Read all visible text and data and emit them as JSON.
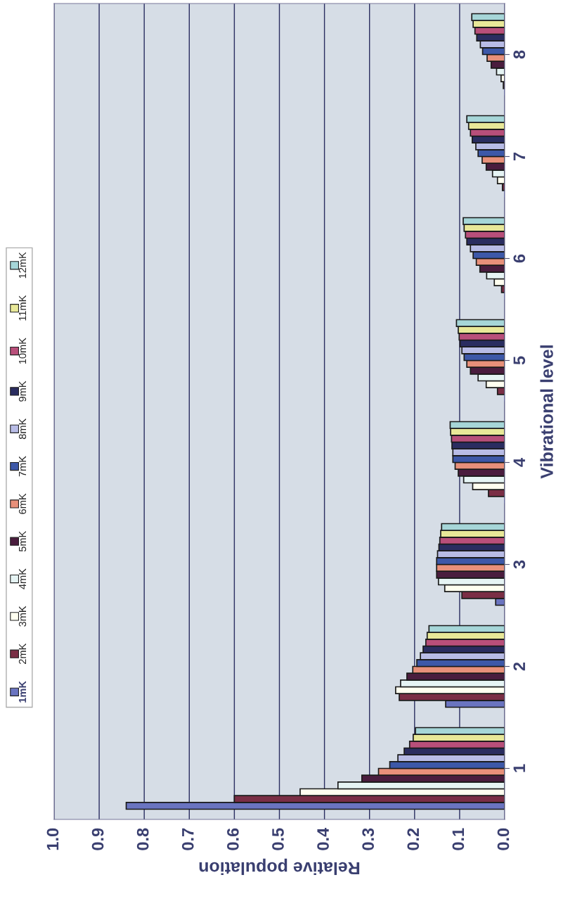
{
  "chart_data": {
    "type": "bar",
    "orientation": "horizontal",
    "xlabel": "Relative population",
    "ylabel": "Vibrational level",
    "categories": [
      "8",
      "7",
      "6",
      "5",
      "4",
      "3",
      "2",
      "1"
    ],
    "xlim": [
      1.0,
      0.0
    ],
    "xticks": [
      {
        "value": 1.0,
        "label": "1.0"
      },
      {
        "value": 0.9,
        "label": "0.9"
      },
      {
        "value": 0.8,
        "label": "0.8"
      },
      {
        "value": 0.7,
        "label": "0.7"
      },
      {
        "value": 0.6,
        "label": "0.6"
      },
      {
        "value": 0.5,
        "label": "0.5"
      },
      {
        "value": 0.4,
        "label": "0.4"
      },
      {
        "value": 0.3,
        "label": "0.3"
      },
      {
        "value": 0.2,
        "label": "0.2"
      },
      {
        "value": 0.1,
        "label": "0.1"
      },
      {
        "value": 0.0,
        "label": "0.0"
      }
    ],
    "grid": "x",
    "legend": "left",
    "series": [
      {
        "name": "1mK",
        "color": "#6a74c0",
        "values": [
          0.0,
          0.0,
          null,
          null,
          null,
          0.02,
          0.131,
          0.84
        ]
      },
      {
        "name": "2mK",
        "color": "#7a2e45",
        "values": [
          0.003,
          0.005,
          0.007,
          0.016,
          0.036,
          0.095,
          0.234,
          0.6
        ]
      },
      {
        "name": "3mK",
        "color": "#fffff0",
        "values": [
          0.008,
          0.016,
          0.023,
          0.041,
          0.071,
          0.133,
          0.242,
          0.454
        ]
      },
      {
        "name": "4mK",
        "color": "#e6f4f4",
        "values": [
          0.018,
          0.027,
          0.04,
          0.059,
          0.091,
          0.147,
          0.231,
          0.37
        ]
      },
      {
        "name": "5mK",
        "color": "#4a1d3e",
        "values": [
          0.03,
          0.041,
          0.055,
          0.076,
          0.103,
          0.151,
          0.217,
          0.317
        ]
      },
      {
        "name": "6mK",
        "color": "#e8907a",
        "values": [
          0.039,
          0.05,
          0.063,
          0.084,
          0.11,
          0.151,
          0.204,
          0.28
        ]
      },
      {
        "name": "7mK",
        "color": "#3d58a8",
        "values": [
          0.049,
          0.059,
          0.07,
          0.09,
          0.115,
          0.151,
          0.195,
          0.255
        ]
      },
      {
        "name": "8mK",
        "color": "#b8bce6",
        "values": [
          0.054,
          0.064,
          0.076,
          0.095,
          0.115,
          0.149,
          0.187,
          0.237
        ]
      },
      {
        "name": "9mK",
        "color": "#2a2d60",
        "values": [
          0.062,
          0.072,
          0.084,
          0.099,
          0.117,
          0.146,
          0.181,
          0.223
        ]
      },
      {
        "name": "10mK",
        "color": "#b84f7a",
        "values": [
          0.066,
          0.076,
          0.087,
          0.101,
          0.118,
          0.144,
          0.175,
          0.211
        ]
      },
      {
        "name": "11mK",
        "color": "#e8e898",
        "values": [
          0.07,
          0.08,
          0.09,
          0.103,
          0.12,
          0.142,
          0.172,
          0.203
        ]
      },
      {
        "name": "12mK",
        "color": "#a6d6d8",
        "values": [
          0.073,
          0.084,
          0.092,
          0.107,
          0.121,
          0.14,
          0.168,
          0.198
        ]
      }
    ]
  }
}
